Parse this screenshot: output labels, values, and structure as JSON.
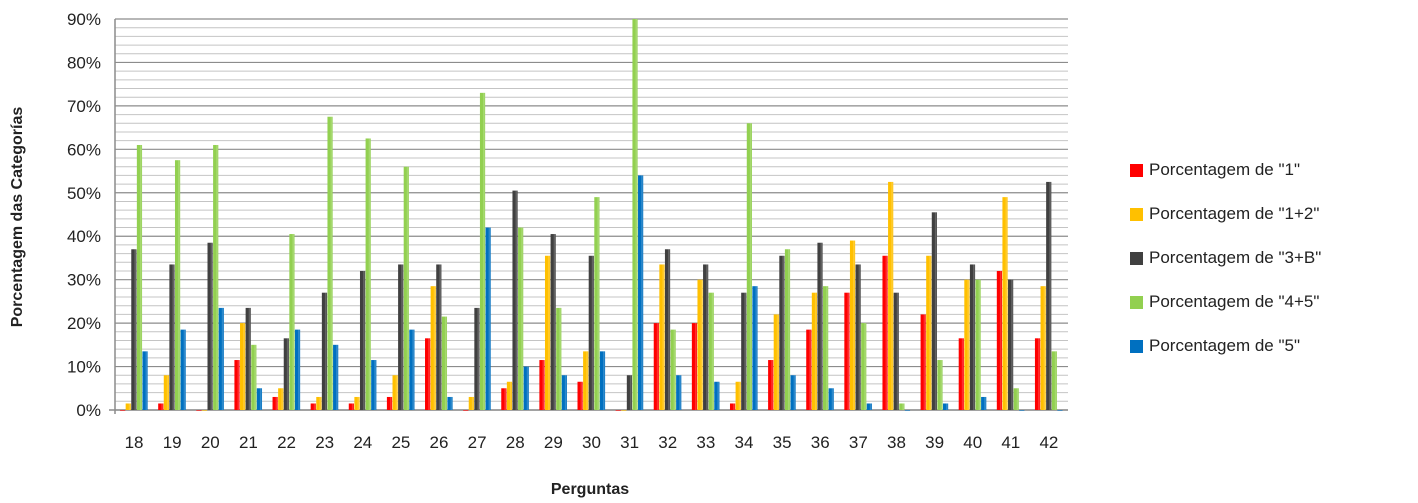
{
  "chart_data": {
    "type": "bar",
    "xlabel": "Perguntas",
    "ylabel": "Porcentagem das Categorías",
    "ylim": [
      0,
      90
    ],
    "yticks": [
      "0%",
      "10%",
      "20%",
      "30%",
      "40%",
      "50%",
      "60%",
      "70%",
      "80%",
      "90%"
    ],
    "grid": true,
    "legend_position": "right",
    "categories": [
      "18",
      "19",
      "20",
      "21",
      "22",
      "23",
      "24",
      "25",
      "26",
      "27",
      "28",
      "29",
      "30",
      "31",
      "32",
      "33",
      "34",
      "35",
      "36",
      "37",
      "38",
      "39",
      "40",
      "41",
      "42"
    ],
    "series": [
      {
        "name": "Porcentagem de \"1\"",
        "color": "#ff0000",
        "values": [
          0,
          1.5,
          0,
          11.5,
          3,
          1.5,
          1.5,
          3,
          16.5,
          0,
          5,
          11.5,
          6.5,
          0,
          20,
          20,
          1.5,
          11.5,
          18.5,
          27,
          35.5,
          22,
          16.5,
          32,
          16.5
        ]
      },
      {
        "name": "Porcentagem de \"1+2\"",
        "color": "#ffc000",
        "values": [
          1.5,
          8,
          0,
          20,
          5,
          3,
          3,
          8,
          28.5,
          3,
          6.5,
          35.5,
          13.5,
          0,
          33.5,
          30,
          6.5,
          22,
          27,
          39,
          52.5,
          35.5,
          30,
          49,
          28.5
        ]
      },
      {
        "name": "Porcentagem de \"3+B\"",
        "color": "#404040",
        "values": [
          37,
          33.5,
          38.5,
          23.5,
          16.5,
          27,
          32,
          33.5,
          33.5,
          23.5,
          50.5,
          40.5,
          35.5,
          8,
          37,
          33.5,
          27,
          35.5,
          38.5,
          33.5,
          27,
          45.5,
          33.5,
          30,
          52.5
        ]
      },
      {
        "name": "Porcentagem de \"4+5\"",
        "color": "#92d050",
        "values": [
          61,
          57.5,
          61,
          15,
          40.5,
          67.5,
          62.5,
          56,
          21.5,
          73,
          42,
          23.5,
          49,
          90,
          18.5,
          27,
          66,
          37,
          28.5,
          20,
          1.5,
          11.5,
          30,
          5,
          13.5
        ]
      },
      {
        "name": "Porcentagem de \"5\"",
        "color": "#0070c0",
        "values": [
          13.5,
          18.5,
          23.5,
          5,
          18.5,
          15,
          11.5,
          18.5,
          3,
          42,
          10,
          8,
          13.5,
          54,
          8,
          6.5,
          28.5,
          8,
          5,
          1.5,
          0,
          1.5,
          3,
          0,
          0
        ]
      }
    ]
  }
}
